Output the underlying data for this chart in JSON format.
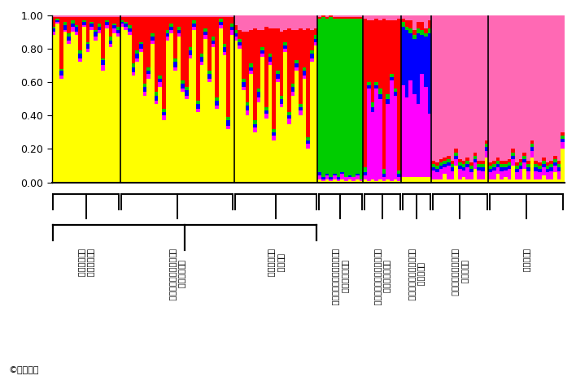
{
  "colors": [
    "#FFFF00",
    "#FF00FF",
    "#0000FF",
    "#00CC00",
    "#FF0000",
    "#FF69B4"
  ],
  "background_color": "#FFFFFF",
  "copyright": "©農研機構",
  "groups": [
    {
      "label": "ミチノクナシ\n（北上山地）",
      "profiles": [
        [
          0.88,
          0.02,
          0.02,
          0.01,
          0.06,
          0.01
        ],
        [
          0.95,
          0.01,
          0.01,
          0.01,
          0.01,
          0.01
        ],
        [
          0.62,
          0.02,
          0.03,
          0.01,
          0.31,
          0.01
        ],
        [
          0.9,
          0.01,
          0.03,
          0.02,
          0.03,
          0.01
        ],
        [
          0.83,
          0.02,
          0.02,
          0.02,
          0.1,
          0.01
        ],
        [
          0.9,
          0.03,
          0.02,
          0.02,
          0.02,
          0.01
        ],
        [
          0.88,
          0.02,
          0.03,
          0.01,
          0.05,
          0.01
        ],
        [
          0.72,
          0.02,
          0.03,
          0.02,
          0.2,
          0.01
        ],
        [
          0.93,
          0.01,
          0.02,
          0.01,
          0.02,
          0.01
        ],
        [
          0.78,
          0.02,
          0.03,
          0.01,
          0.15,
          0.01
        ],
        [
          0.91,
          0.02,
          0.02,
          0.01,
          0.03,
          0.01
        ],
        [
          0.85,
          0.02,
          0.03,
          0.01,
          0.08,
          0.01
        ],
        [
          0.89,
          0.02,
          0.02,
          0.02,
          0.04,
          0.01
        ],
        [
          0.67,
          0.03,
          0.03,
          0.01,
          0.25,
          0.01
        ],
        [
          0.92,
          0.02,
          0.02,
          0.01,
          0.02,
          0.01
        ],
        [
          0.81,
          0.02,
          0.02,
          0.02,
          0.12,
          0.01
        ],
        [
          0.89,
          0.03,
          0.02,
          0.01,
          0.04,
          0.01
        ],
        [
          0.87,
          0.02,
          0.02,
          0.02,
          0.06,
          0.01
        ]
      ]
    },
    {
      "label": "ミチノクナシ\n（その他の北東北地方）",
      "profiles": [
        [
          0.93,
          0.02,
          0.01,
          0.01,
          0.02,
          0.01
        ],
        [
          0.91,
          0.02,
          0.02,
          0.01,
          0.03,
          0.01
        ],
        [
          0.88,
          0.02,
          0.02,
          0.02,
          0.05,
          0.01
        ],
        [
          0.64,
          0.02,
          0.03,
          0.02,
          0.28,
          0.01
        ],
        [
          0.72,
          0.02,
          0.03,
          0.02,
          0.2,
          0.01
        ],
        [
          0.78,
          0.02,
          0.03,
          0.01,
          0.15,
          0.01
        ],
        [
          0.52,
          0.02,
          0.03,
          0.02,
          0.4,
          0.01
        ],
        [
          0.62,
          0.03,
          0.02,
          0.02,
          0.3,
          0.01
        ],
        [
          0.83,
          0.02,
          0.02,
          0.02,
          0.1,
          0.01
        ],
        [
          0.47,
          0.02,
          0.03,
          0.02,
          0.45,
          0.01
        ],
        [
          0.57,
          0.03,
          0.02,
          0.02,
          0.35,
          0.01
        ],
        [
          0.37,
          0.03,
          0.02,
          0.02,
          0.55,
          0.01
        ],
        [
          0.85,
          0.02,
          0.02,
          0.02,
          0.08,
          0.01
        ],
        [
          0.89,
          0.02,
          0.02,
          0.02,
          0.04,
          0.01
        ],
        [
          0.67,
          0.02,
          0.03,
          0.02,
          0.25,
          0.01
        ],
        [
          0.87,
          0.02,
          0.02,
          0.02,
          0.06,
          0.01
        ],
        [
          0.54,
          0.02,
          0.03,
          0.02,
          0.38,
          0.01
        ],
        [
          0.5,
          0.02,
          0.03,
          0.02,
          0.42,
          0.01
        ],
        [
          0.74,
          0.02,
          0.03,
          0.02,
          0.18,
          0.01
        ],
        [
          0.91,
          0.02,
          0.02,
          0.02,
          0.02,
          0.01
        ],
        [
          0.42,
          0.02,
          0.03,
          0.02,
          0.5,
          0.01
        ],
        [
          0.7,
          0.02,
          0.03,
          0.02,
          0.22,
          0.01
        ],
        [
          0.86,
          0.02,
          0.02,
          0.02,
          0.07,
          0.01
        ],
        [
          0.6,
          0.02,
          0.03,
          0.02,
          0.32,
          0.01
        ],
        [
          0.81,
          0.02,
          0.02,
          0.02,
          0.12,
          0.01
        ],
        [
          0.44,
          0.02,
          0.03,
          0.02,
          0.48,
          0.01
        ],
        [
          0.92,
          0.02,
          0.02,
          0.02,
          0.01,
          0.01
        ],
        [
          0.76,
          0.02,
          0.03,
          0.02,
          0.16,
          0.01
        ],
        [
          0.32,
          0.02,
          0.03,
          0.02,
          0.6,
          0.01
        ],
        [
          0.88,
          0.03,
          0.02,
          0.02,
          0.04,
          0.01
        ]
      ]
    },
    {
      "label": "アオナシ\n（中部地方）",
      "profiles": [
        [
          0.85,
          0.02,
          0.02,
          0.02,
          0.03,
          0.06
        ],
        [
          0.8,
          0.02,
          0.02,
          0.02,
          0.05,
          0.09
        ],
        [
          0.55,
          0.02,
          0.03,
          0.02,
          0.28,
          0.1
        ],
        [
          0.4,
          0.03,
          0.03,
          0.02,
          0.42,
          0.1
        ],
        [
          0.65,
          0.02,
          0.02,
          0.02,
          0.2,
          0.09
        ],
        [
          0.3,
          0.03,
          0.02,
          0.02,
          0.55,
          0.08
        ],
        [
          0.48,
          0.03,
          0.03,
          0.02,
          0.35,
          0.09
        ],
        [
          0.75,
          0.02,
          0.02,
          0.02,
          0.1,
          0.09
        ],
        [
          0.38,
          0.03,
          0.02,
          0.02,
          0.48,
          0.07
        ],
        [
          0.7,
          0.02,
          0.03,
          0.02,
          0.15,
          0.08
        ],
        [
          0.25,
          0.03,
          0.02,
          0.02,
          0.6,
          0.08
        ],
        [
          0.6,
          0.02,
          0.03,
          0.02,
          0.25,
          0.08
        ],
        [
          0.45,
          0.02,
          0.03,
          0.02,
          0.38,
          0.1
        ],
        [
          0.78,
          0.02,
          0.02,
          0.02,
          0.07,
          0.09
        ],
        [
          0.35,
          0.03,
          0.02,
          0.02,
          0.5,
          0.08
        ],
        [
          0.52,
          0.02,
          0.03,
          0.02,
          0.32,
          0.09
        ],
        [
          0.67,
          0.02,
          0.02,
          0.02,
          0.18,
          0.09
        ],
        [
          0.4,
          0.03,
          0.02,
          0.02,
          0.45,
          0.08
        ],
        [
          0.62,
          0.02,
          0.03,
          0.02,
          0.22,
          0.09
        ],
        [
          0.2,
          0.03,
          0.02,
          0.02,
          0.65,
          0.08
        ],
        [
          0.72,
          0.02,
          0.03,
          0.02,
          0.12,
          0.09
        ],
        [
          0.82,
          0.02,
          0.02,
          0.02,
          0.04,
          0.08
        ]
      ]
    },
    {
      "label": "ホクシャマナシ\n（アジア大陸の野生個体）",
      "profiles": [
        [
          0.02,
          0.02,
          0.02,
          0.92,
          0.01,
          0.01
        ],
        [
          0.01,
          0.01,
          0.01,
          0.96,
          0.01,
          0.0
        ],
        [
          0.02,
          0.02,
          0.01,
          0.93,
          0.01,
          0.01
        ],
        [
          0.01,
          0.01,
          0.01,
          0.96,
          0.01,
          0.0
        ],
        [
          0.02,
          0.02,
          0.01,
          0.93,
          0.01,
          0.01
        ],
        [
          0.01,
          0.01,
          0.01,
          0.95,
          0.01,
          0.01
        ],
        [
          0.02,
          0.03,
          0.01,
          0.92,
          0.01,
          0.01
        ],
        [
          0.01,
          0.02,
          0.0,
          0.95,
          0.01,
          0.01
        ],
        [
          0.02,
          0.01,
          0.01,
          0.94,
          0.01,
          0.01
        ],
        [
          0.01,
          0.02,
          0.0,
          0.95,
          0.01,
          0.01
        ],
        [
          0.02,
          0.02,
          0.01,
          0.93,
          0.01,
          0.01
        ],
        [
          0.01,
          0.01,
          0.0,
          0.96,
          0.01,
          0.01
        ]
      ]
    },
    {
      "label": "ホクシャマナシ\n（アジア大陸の古い品種）",
      "profiles": [
        [
          0.02,
          0.02,
          0.02,
          0.03,
          0.89,
          0.02
        ],
        [
          0.01,
          0.55,
          0.02,
          0.02,
          0.37,
          0.03
        ],
        [
          0.02,
          0.4,
          0.03,
          0.03,
          0.49,
          0.03
        ],
        [
          0.01,
          0.55,
          0.02,
          0.02,
          0.38,
          0.02
        ],
        [
          0.02,
          0.48,
          0.03,
          0.03,
          0.41,
          0.03
        ],
        [
          0.01,
          0.02,
          0.02,
          0.03,
          0.9,
          0.02
        ],
        [
          0.02,
          0.45,
          0.03,
          0.03,
          0.44,
          0.03
        ],
        [
          0.01,
          0.6,
          0.02,
          0.02,
          0.32,
          0.03
        ],
        [
          0.02,
          0.5,
          0.02,
          0.02,
          0.41,
          0.03
        ],
        [
          0.01,
          0.02,
          0.02,
          0.02,
          0.91,
          0.02
        ]
      ]
    },
    {
      "label": "ニホンナシ\n（日本海側の古い品種）",
      "profiles": [
        [
          0.03,
          0.55,
          0.35,
          0.03,
          0.02,
          0.02
        ],
        [
          0.03,
          0.48,
          0.4,
          0.02,
          0.04,
          0.03
        ],
        [
          0.03,
          0.58,
          0.28,
          0.03,
          0.05,
          0.03
        ],
        [
          0.03,
          0.5,
          0.33,
          0.02,
          0.03,
          0.09
        ],
        [
          0.03,
          0.44,
          0.42,
          0.03,
          0.04,
          0.04
        ],
        [
          0.03,
          0.62,
          0.23,
          0.03,
          0.05,
          0.04
        ],
        [
          0.03,
          0.54,
          0.3,
          0.02,
          0.03,
          0.08
        ],
        [
          0.03,
          0.38,
          0.48,
          0.03,
          0.05,
          0.03
        ]
      ]
    },
    {
      "label": "ニホンナシ\n（西日本の古い品種）",
      "profiles": [
        [
          0.02,
          0.05,
          0.02,
          0.02,
          0.02,
          0.87
        ],
        [
          0.02,
          0.04,
          0.02,
          0.02,
          0.02,
          0.88
        ],
        [
          0.02,
          0.06,
          0.02,
          0.02,
          0.02,
          0.86
        ],
        [
          0.05,
          0.04,
          0.02,
          0.02,
          0.02,
          0.85
        ],
        [
          0.02,
          0.08,
          0.02,
          0.02,
          0.02,
          0.84
        ],
        [
          0.02,
          0.05,
          0.02,
          0.02,
          0.02,
          0.89
        ],
        [
          0.1,
          0.04,
          0.02,
          0.02,
          0.02,
          0.8
        ],
        [
          0.02,
          0.06,
          0.02,
          0.02,
          0.02,
          0.86
        ],
        [
          0.03,
          0.04,
          0.02,
          0.02,
          0.02,
          0.87
        ],
        [
          0.02,
          0.07,
          0.02,
          0.02,
          0.02,
          0.85
        ],
        [
          0.02,
          0.04,
          0.02,
          0.02,
          0.02,
          0.88
        ],
        [
          0.08,
          0.04,
          0.02,
          0.02,
          0.02,
          0.82
        ],
        [
          0.02,
          0.05,
          0.02,
          0.02,
          0.02,
          0.87
        ],
        [
          0.02,
          0.05,
          0.02,
          0.02,
          0.02,
          0.89
        ],
        [
          0.15,
          0.04,
          0.02,
          0.02,
          0.02,
          0.75
        ]
      ]
    },
    {
      "label": "ニホンナシ",
      "profiles": [
        [
          0.02,
          0.04,
          0.02,
          0.02,
          0.02,
          0.88
        ],
        [
          0.02,
          0.05,
          0.02,
          0.02,
          0.02,
          0.87
        ],
        [
          0.05,
          0.04,
          0.02,
          0.02,
          0.02,
          0.85
        ],
        [
          0.02,
          0.05,
          0.02,
          0.02,
          0.02,
          0.89
        ],
        [
          0.03,
          0.04,
          0.02,
          0.02,
          0.02,
          0.87
        ],
        [
          0.02,
          0.06,
          0.02,
          0.02,
          0.02,
          0.88
        ],
        [
          0.1,
          0.04,
          0.02,
          0.02,
          0.02,
          0.8
        ],
        [
          0.02,
          0.04,
          0.02,
          0.02,
          0.02,
          0.88
        ],
        [
          0.02,
          0.06,
          0.02,
          0.02,
          0.02,
          0.86
        ],
        [
          0.08,
          0.04,
          0.02,
          0.02,
          0.02,
          0.82
        ],
        [
          0.02,
          0.05,
          0.02,
          0.02,
          0.02,
          0.89
        ],
        [
          0.15,
          0.04,
          0.02,
          0.02,
          0.02,
          0.75
        ],
        [
          0.02,
          0.05,
          0.02,
          0.02,
          0.02,
          0.89
        ],
        [
          0.02,
          0.04,
          0.02,
          0.02,
          0.02,
          0.88
        ],
        [
          0.04,
          0.05,
          0.02,
          0.02,
          0.02,
          0.85
        ],
        [
          0.02,
          0.04,
          0.02,
          0.02,
          0.02,
          0.88
        ],
        [
          0.02,
          0.05,
          0.02,
          0.02,
          0.02,
          0.89
        ],
        [
          0.06,
          0.04,
          0.02,
          0.02,
          0.02,
          0.84
        ],
        [
          0.02,
          0.05,
          0.02,
          0.02,
          0.02,
          0.89
        ],
        [
          0.2,
          0.04,
          0.02,
          0.02,
          0.02,
          0.7
        ]
      ]
    }
  ]
}
